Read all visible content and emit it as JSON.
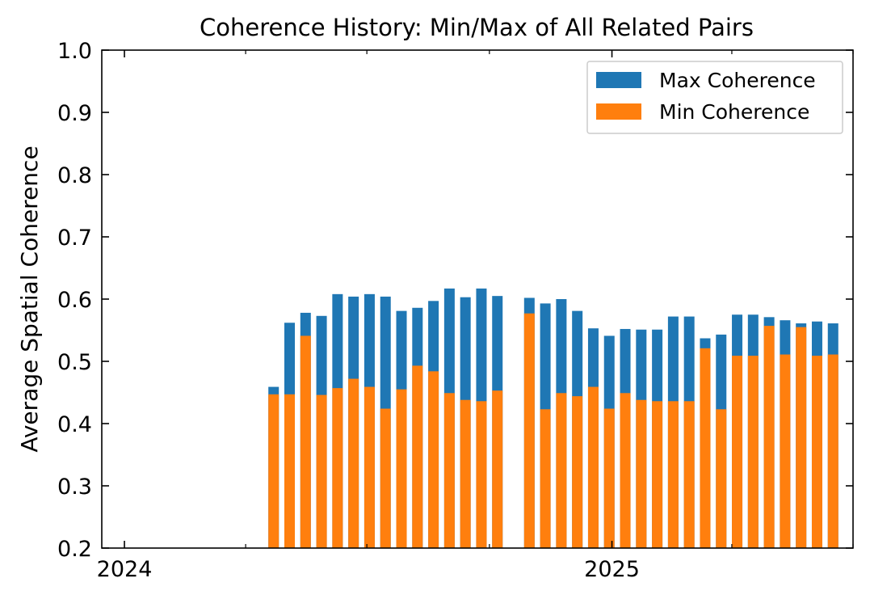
{
  "chart_data": {
    "type": "bar",
    "stacked": false,
    "overlay": true,
    "title": "Coherence History: Min/Max of All Related Pairs",
    "xlabel": "",
    "ylabel": "Average Spatial Coherence",
    "ylim": [
      0.2,
      1.0
    ],
    "xlim": [
      "2023-12-15",
      "2025-07-01"
    ],
    "yticks": [
      0.2,
      0.3,
      0.4,
      0.5,
      0.6,
      0.7,
      0.8,
      0.9,
      1.0
    ],
    "ytick_labels": [
      "0.2",
      "0.3",
      "0.4",
      "0.5",
      "0.6",
      "0.7",
      "0.8",
      "0.9",
      "1.0"
    ],
    "xticks": [
      "2024-01-01",
      "2025-01-01"
    ],
    "xtick_labels": [
      "2024",
      "2025"
    ],
    "xticks_minor": [
      "2024-04-01",
      "2024-07-01",
      "2024-10-01",
      "2025-04-01",
      "2025-07-01"
    ],
    "grid": false,
    "legend": "top-right",
    "colors": {
      "max": "#1f77b4",
      "min": "#ff7f0e"
    },
    "x": [
      "2024-04-22",
      "2024-05-04",
      "2024-05-16",
      "2024-05-28",
      "2024-06-09",
      "2024-06-21",
      "2024-07-03",
      "2024-07-15",
      "2024-07-27",
      "2024-08-08",
      "2024-08-20",
      "2024-09-01",
      "2024-09-13",
      "2024-09-25",
      "2024-10-07",
      "2024-10-31",
      "2024-11-12",
      "2024-11-24",
      "2024-12-06",
      "2024-12-18",
      "2024-12-30",
      "2025-01-11",
      "2025-01-23",
      "2025-02-04",
      "2025-02-16",
      "2025-02-28",
      "2025-03-12",
      "2025-03-24",
      "2025-04-05",
      "2025-04-17",
      "2025-04-29",
      "2025-05-11",
      "2025-05-23",
      "2025-06-04",
      "2025-06-16"
    ],
    "series": [
      {
        "name": "Max Coherence",
        "values": [
          0.459,
          0.562,
          0.578,
          0.573,
          0.608,
          0.604,
          0.608,
          0.604,
          0.581,
          0.586,
          0.597,
          0.617,
          0.603,
          0.617,
          0.605,
          0.602,
          0.593,
          0.6,
          0.581,
          0.553,
          0.541,
          0.552,
          0.551,
          0.551,
          0.572,
          0.572,
          0.537,
          0.543,
          0.575,
          0.575,
          0.571,
          0.566,
          0.561,
          0.564,
          0.561
        ]
      },
      {
        "name": "Min Coherence",
        "values": [
          0.447,
          0.447,
          0.541,
          0.446,
          0.457,
          0.472,
          0.459,
          0.424,
          0.455,
          0.493,
          0.484,
          0.449,
          0.438,
          0.436,
          0.453,
          0.577,
          0.423,
          0.449,
          0.444,
          0.459,
          0.424,
          0.449,
          0.438,
          0.436,
          0.436,
          0.436,
          0.521,
          0.423,
          0.509,
          0.509,
          0.557,
          0.511,
          0.555,
          0.509,
          0.511
        ]
      }
    ]
  }
}
